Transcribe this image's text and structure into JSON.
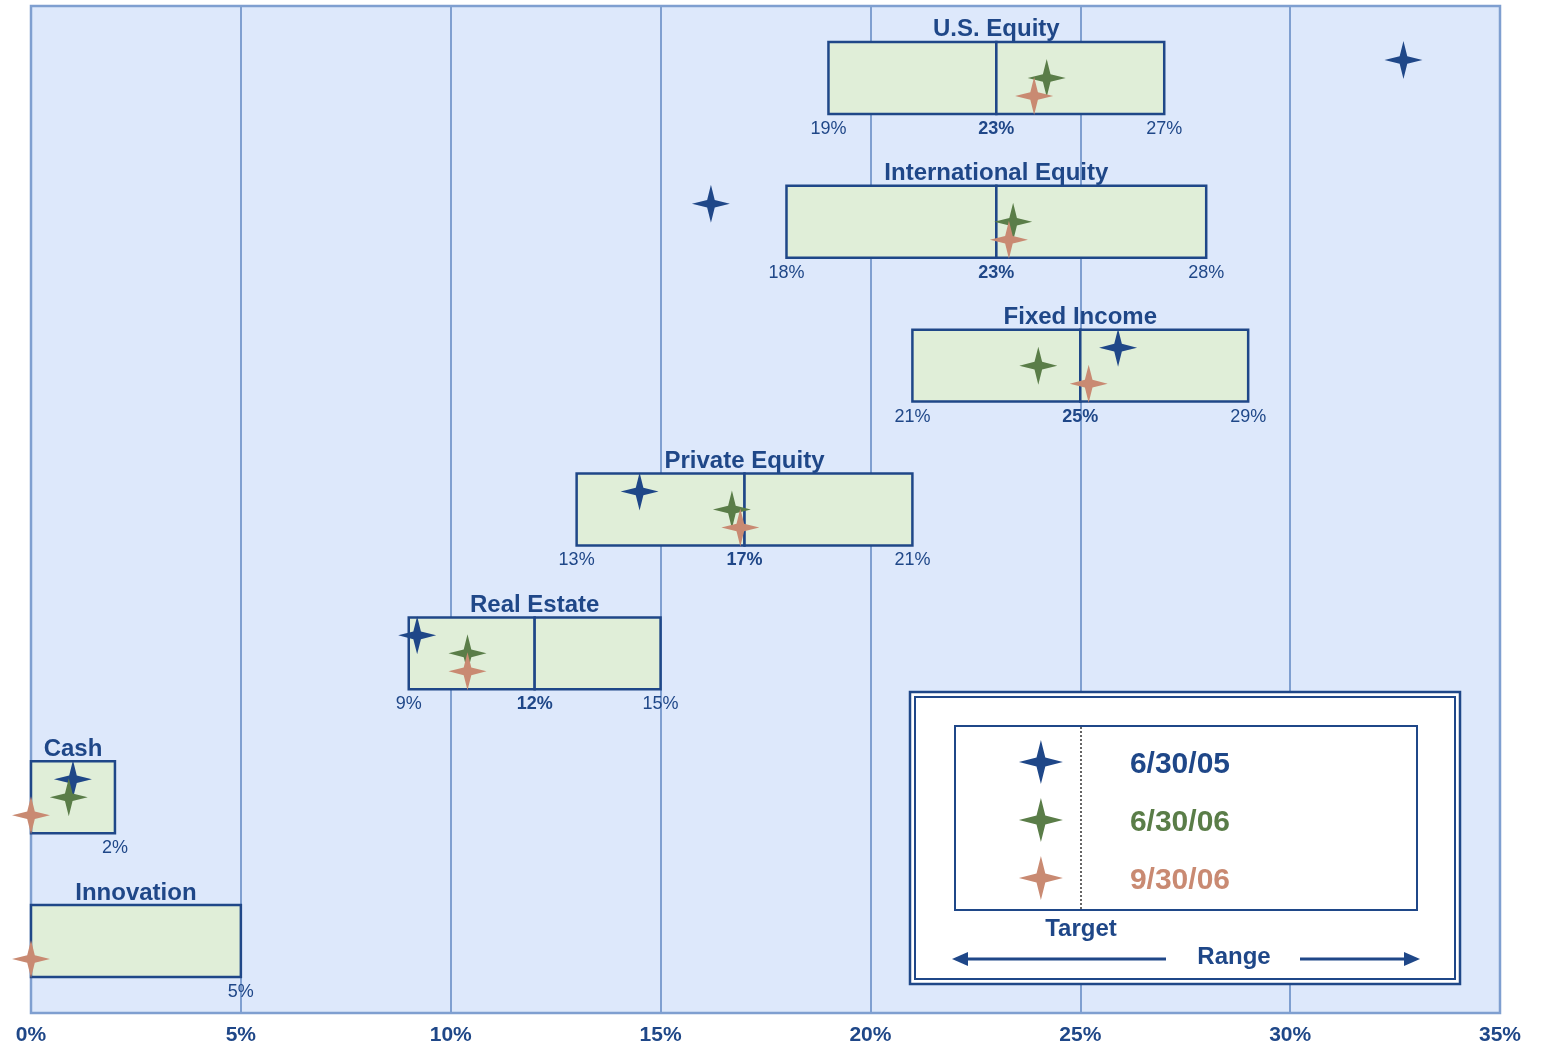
{
  "chart_data": {
    "type": "bar",
    "orientation": "horizontal",
    "categories": [
      "U.S. Equity",
      "International Equity",
      "Fixed Income",
      "Private Equity",
      "Real Estate",
      "Cash",
      "Innovation"
    ],
    "series": [
      {
        "color": "#e0eed8",
        "base": [
          19,
          18,
          21,
          13,
          9,
          0,
          0
        ],
        "values": [
          4,
          5,
          4,
          4,
          3,
          2,
          5
        ]
      },
      {
        "color": "#e0eed8",
        "base": [
          23,
          23,
          25,
          17,
          12,
          null,
          null
        ],
        "values": [
          4,
          5,
          4,
          4,
          3,
          null,
          null
        ]
      },
      {
        "type": "scatter",
        "name": "6/30/05",
        "color": "#1f4788",
        "x": [
          "U.S. Equity",
          "International Equity",
          "Fixed Income",
          "Private Equity",
          "Real Estate",
          "Cash",
          "Innovation"
        ],
        "values": [
          32.7,
          16.2,
          25.9,
          14.5,
          9.2,
          1.0,
          null
        ]
      },
      {
        "type": "scatter",
        "name": "6/30/06",
        "color": "#5a7d48",
        "x": [
          "U.S. Equity",
          "International Equity",
          "Fixed Income",
          "Private Equity",
          "Real Estate",
          "Cash",
          "Innovation"
        ],
        "values": [
          24.2,
          23.4,
          24.0,
          16.7,
          10.4,
          0.9,
          null
        ]
      },
      {
        "type": "scatter",
        "name": "9/30/06",
        "color": "#c98a72",
        "x": [
          "U.S. Equity",
          "International Equity",
          "Fixed Income",
          "Private Equity",
          "Real Estate",
          "Cash",
          "Innovation"
        ],
        "values": [
          23.9,
          23.3,
          25.2,
          16.9,
          10.4,
          0.0,
          0.0
        ]
      }
    ],
    "marker": "star",
    "xlim": [
      0,
      35
    ],
    "xticks": [
      {
        "value": 0,
        "label": "0%"
      },
      {
        "value": 5,
        "label": "5%"
      },
      {
        "value": 10,
        "label": "10%"
      },
      {
        "value": 15,
        "label": "15%"
      },
      {
        "value": 20,
        "label": "20%"
      },
      {
        "value": 25,
        "label": "25%"
      },
      {
        "value": 30,
        "label": "30%"
      },
      {
        "value": 35,
        "label": "35%"
      }
    ],
    "grid": "x",
    "tick_labels": "x",
    "legend": "bottom right",
    "annotations": [
      "Target",
      "Range",
      {
        "text": "19%",
        "x": 19,
        "y": "U.S. Equity"
      },
      {
        "text": "23%",
        "x": 23,
        "y": "U.S. Equity"
      },
      {
        "text": "27%",
        "x": 27,
        "y": "U.S. Equity"
      },
      {
        "text": "18%",
        "x": 18,
        "y": "International Equity"
      },
      {
        "text": "23%",
        "x": 23,
        "y": "International Equity"
      },
      {
        "text": "28%",
        "x": 28,
        "y": "International Equity"
      },
      {
        "text": "21%",
        "x": 21,
        "y": "Fixed Income"
      },
      {
        "text": "25%",
        "x": 25,
        "y": "Fixed Income"
      },
      {
        "text": "29%",
        "x": 29,
        "y": "Fixed Income"
      },
      {
        "text": "13%",
        "x": 13,
        "y": "Private Equity"
      },
      {
        "text": "17%",
        "x": 17,
        "y": "Private Equity"
      },
      {
        "text": "21%",
        "x": 21,
        "y": "Private Equity"
      },
      {
        "text": "9%",
        "x": 9,
        "y": "Real Estate"
      },
      {
        "text": "12%",
        "x": 12,
        "y": "Real Estate"
      },
      {
        "text": "15%",
        "x": 15,
        "y": "Real Estate"
      },
      {
        "text": "2%",
        "x": 2,
        "y": "Cash"
      },
      {
        "text": "5%",
        "x": 5,
        "y": "Innovation"
      }
    ]
  }
}
